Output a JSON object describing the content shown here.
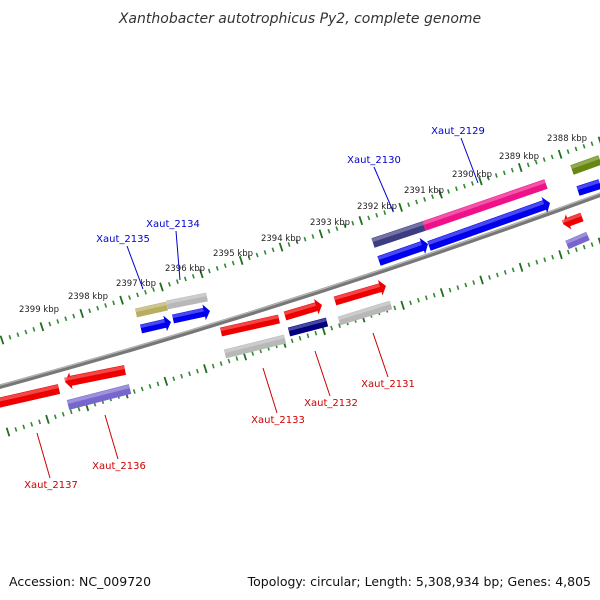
{
  "title": "Xanthobacter autotrophicus Py2, complete genome",
  "accession": "Accession: NC_009720",
  "summary": "Topology: circular; Length: 5,308,934 bp; Genes: 4,805",
  "colors": {
    "backbone": "#808080",
    "tick_minor": "#2e8b2e",
    "tick_major": "#1f6e1f",
    "label_plus": "#0000cc",
    "label_minus": "#cc0000"
  },
  "kbp_labels": [
    "2388 kbp",
    "2389 kbp",
    "2390 kbp",
    "2391 kbp",
    "2392 kbp",
    "2393 kbp",
    "2394 kbp",
    "2395 kbp",
    "2396 kbp",
    "2397 kbp",
    "2398 kbp",
    "2399 kbp"
  ],
  "genes": [
    {
      "name": "Xaut_2129",
      "strand": "plus"
    },
    {
      "name": "Xaut_2130",
      "strand": "plus"
    },
    {
      "name": "Xaut_2134",
      "strand": "plus"
    },
    {
      "name": "Xaut_2135",
      "strand": "plus"
    },
    {
      "name": "Xaut_2131",
      "strand": "minus"
    },
    {
      "name": "Xaut_2132",
      "strand": "minus"
    },
    {
      "name": "Xaut_2133",
      "strand": "minus"
    },
    {
      "name": "Xaut_2136",
      "strand": "minus"
    },
    {
      "name": "Xaut_2137",
      "strand": "minus"
    }
  ]
}
